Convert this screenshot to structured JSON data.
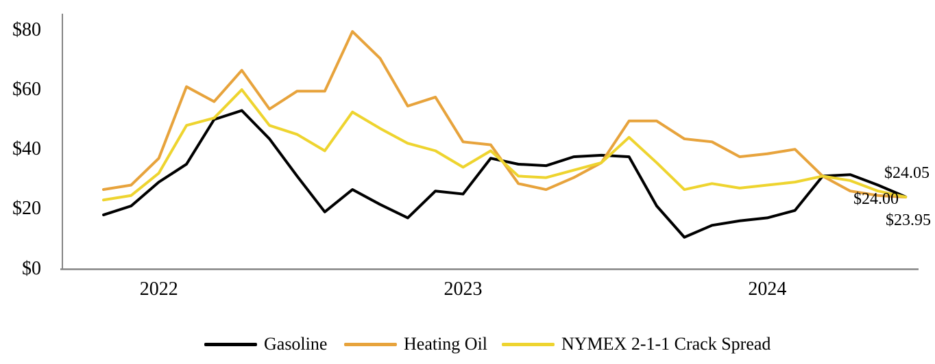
{
  "chart_data": {
    "type": "line",
    "title": "",
    "xlabel": "",
    "ylabel": "",
    "n_points": 30,
    "ylim": [
      0,
      80
    ],
    "grid": false,
    "legend_position": "bottom",
    "axis_color": "#858585",
    "y_ticks": [
      {
        "label": "$80",
        "value": 80
      },
      {
        "label": "$60",
        "value": 60
      },
      {
        "label": "$40",
        "value": 40
      },
      {
        "label": "$20",
        "value": 20
      },
      {
        "label": "$0",
        "value": 0
      }
    ],
    "year_ticks": [
      {
        "label": "2022",
        "index": 2
      },
      {
        "label": "2023",
        "index": 13
      },
      {
        "label": "2024",
        "index": 24
      }
    ],
    "series": [
      {
        "name": "Gasoline",
        "color": "#000000",
        "end_label": "$24.05",
        "values": [
          18,
          21,
          29,
          35,
          50,
          53,
          43.5,
          31,
          19,
          26.5,
          21.5,
          17,
          26,
          25,
          37,
          35,
          34.5,
          37.5,
          38,
          37.5,
          21,
          10.5,
          14.5,
          16,
          17,
          19.5,
          31,
          31.5,
          28,
          24.05
        ]
      },
      {
        "name": "Heating Oil",
        "color": "#E7A33C",
        "end_label": "$23.95",
        "values": [
          26.5,
          28,
          37,
          61,
          56,
          66.5,
          53.5,
          59.5,
          59.5,
          79.5,
          70.5,
          54.5,
          57.5,
          42.5,
          41.5,
          28.5,
          26.5,
          30.5,
          35.5,
          49.5,
          49.5,
          43.5,
          42.5,
          37.5,
          38.5,
          40,
          31,
          26,
          24.5,
          23.95
        ]
      },
      {
        "name": "NYMEX 2-1-1 Crack Spread",
        "color": "#EED42F",
        "end_label": "$24.00",
        "values": [
          23,
          24.5,
          32,
          48,
          50.5,
          60,
          48,
          45,
          39.5,
          52.5,
          47,
          42,
          39.5,
          34,
          39.5,
          31,
          30.5,
          33,
          35.5,
          44,
          35.5,
          26.5,
          28.5,
          27,
          28,
          29,
          31,
          29.5,
          26,
          24
        ]
      }
    ]
  }
}
